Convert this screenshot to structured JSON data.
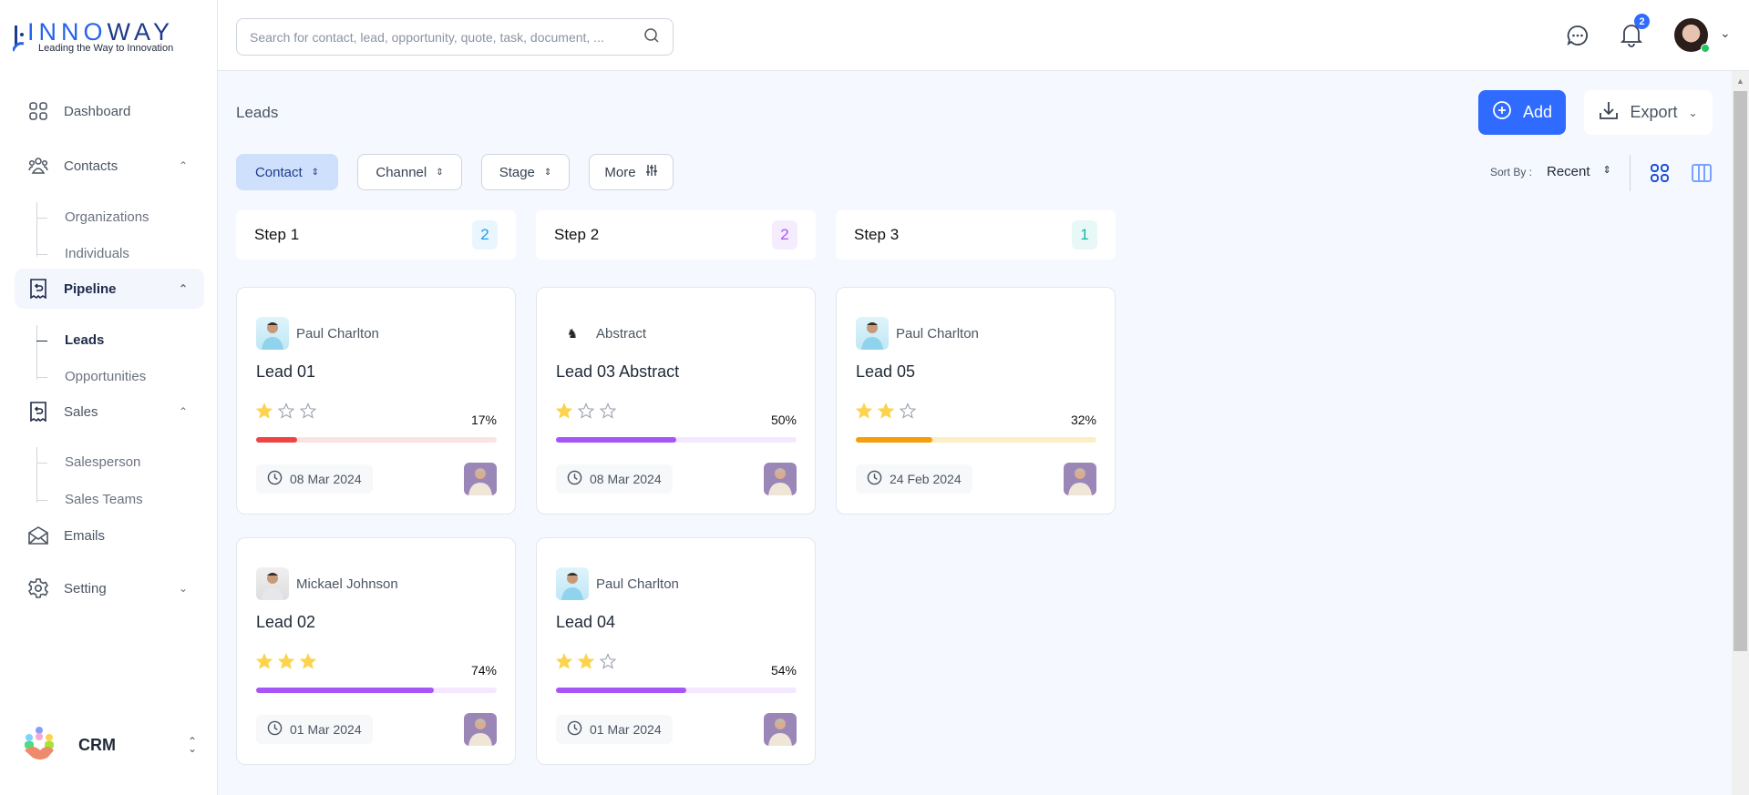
{
  "brand": {
    "name_a": "INNO",
    "name_b": "WAY",
    "tagline": "Leading the Way to Innovation"
  },
  "sidebar": {
    "items": [
      {
        "label": "Dashboard",
        "icon": "grid-icon"
      },
      {
        "label": "Contacts",
        "icon": "users-icon",
        "children": [
          "Organizations",
          "Individuals"
        ]
      },
      {
        "label": "Pipeline",
        "icon": "receipt-icon",
        "active": true,
        "children": [
          "Leads",
          "Opportunities"
        ],
        "active_child": "Leads"
      },
      {
        "label": "Sales",
        "icon": "receipt-icon",
        "children": [
          "Salesperson",
          "Sales Teams"
        ]
      },
      {
        "label": "Emails",
        "icon": "mail-icon"
      },
      {
        "label": "Setting",
        "icon": "gear-icon"
      }
    ],
    "workspace": "CRM"
  },
  "header": {
    "search_placeholder": "Search for contact, lead, opportunity, quote, task, document, ...",
    "notification_count": "2"
  },
  "page": {
    "title": "Leads",
    "add_label": "Add",
    "export_label": "Export",
    "filters": [
      "Contact",
      "Channel",
      "Stage",
      "More"
    ],
    "sort_label": "Sort By :",
    "sort_value": "Recent"
  },
  "colors": {
    "primary": "#2f6bff",
    "red": "#ef4444",
    "purple": "#a855f7",
    "orange": "#f59e0b"
  },
  "columns": [
    {
      "name": "Step 1",
      "count": "2",
      "color": "#1d9bf0",
      "bg": "#eaf6fe",
      "cards": [
        {
          "contact": "Paul Charlton",
          "avatar": "person",
          "title": "Lead 01",
          "rating": 1,
          "percent": 17,
          "pct_label": "17%",
          "color": "#ef4444",
          "track": "#fde2e2",
          "date": "08 Mar 2024"
        },
        {
          "contact": "Mickael Johnson",
          "avatar": "person2",
          "title": "Lead 02",
          "rating": 3,
          "percent": 74,
          "pct_label": "74%",
          "color": "#a855f7",
          "track": "#f3e8ff",
          "date": "01 Mar 2024"
        }
      ]
    },
    {
      "name": "Step 2",
      "count": "2",
      "color": "#a855f7",
      "bg": "#f5edfe",
      "cards": [
        {
          "contact": "Abstract",
          "avatar": "logo",
          "title": "Lead 03 Abstract",
          "rating": 1,
          "percent": 50,
          "pct_label": "50%",
          "color": "#a855f7",
          "track": "#f3e8ff",
          "date": "08 Mar 2024"
        },
        {
          "contact": "Paul Charlton",
          "avatar": "person",
          "title": "Lead 04",
          "rating": 2,
          "percent": 54,
          "pct_label": "54%",
          "color": "#a855f7",
          "track": "#f3e8ff",
          "date": "01 Mar 2024"
        }
      ]
    },
    {
      "name": "Step 3",
      "count": "1",
      "color": "#14b8a6",
      "bg": "#e8f8f6",
      "cards": [
        {
          "contact": "Paul Charlton",
          "avatar": "person",
          "title": "Lead 05",
          "rating": 2,
          "percent": 32,
          "pct_label": "32%",
          "color": "#f59e0b",
          "track": "#fdefc4",
          "date": "24 Feb 2024"
        }
      ]
    }
  ]
}
